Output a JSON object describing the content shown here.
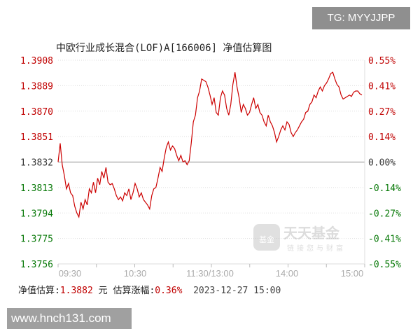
{
  "banner": "TG: MYYJJPP",
  "footer_site": "www.hnch131.com",
  "chart_data": {
    "type": "line",
    "title": "中欧行业成长混合(LOF)A[166006]  净值估算图",
    "x_tick_labels": [
      "09:30",
      "10:30",
      "11:30/13:00",
      "14:00",
      "15:00"
    ],
    "y_left_ticks": [
      "1.3908",
      "1.3889",
      "1.3870",
      "1.3851",
      "1.3832",
      "1.3813",
      "1.3794",
      "1.3775",
      "1.3756"
    ],
    "y_right_ticks": [
      "0.55%",
      "0.41%",
      "0.27%",
      "0.14%",
      "0.00%",
      "-0.14%",
      "-0.27%",
      "-0.41%",
      "-0.55%"
    ],
    "ylim": [
      1.3756,
      1.3908
    ],
    "baseline": 1.3832,
    "grid": true,
    "colors": {
      "line": "#cc0000",
      "up": "#c00000",
      "down": "#0a7a0a",
      "grid": "#dddddd"
    },
    "values": [
      1.3832,
      1.3846,
      1.383,
      1.3822,
      1.3812,
      1.3816,
      1.3809,
      1.3807,
      1.3799,
      1.3794,
      1.3791,
      1.3802,
      1.3797,
      1.3804,
      1.38,
      1.3812,
      1.3809,
      1.3817,
      1.3809,
      1.382,
      1.3815,
      1.3825,
      1.382,
      1.3828,
      1.3817,
      1.3815,
      1.3816,
      1.3812,
      1.3807,
      1.3804,
      1.3806,
      1.3803,
      1.3809,
      1.3807,
      1.3812,
      1.3804,
      1.3809,
      1.3816,
      1.3812,
      1.3806,
      1.3809,
      1.3804,
      1.3802,
      1.38,
      1.3797,
      1.3807,
      1.3812,
      1.3813,
      1.382,
      1.3828,
      1.3825,
      1.3835,
      1.3843,
      1.3847,
      1.3841,
      1.3844,
      1.3842,
      1.3837,
      1.3833,
      1.3837,
      1.3832,
      1.3833,
      1.383,
      1.3833,
      1.3846,
      1.3862,
      1.3867,
      1.388,
      1.3885,
      1.3894,
      1.3893,
      1.3892,
      1.3888,
      1.3882,
      1.3875,
      1.388,
      1.3869,
      1.3867,
      1.388,
      1.3885,
      1.3882,
      1.3872,
      1.3867,
      1.3875,
      1.389,
      1.3899,
      1.3888,
      1.388,
      1.3869,
      1.3875,
      1.3872,
      1.3867,
      1.3869,
      1.3875,
      1.388,
      1.3872,
      1.3875,
      1.3869,
      1.3867,
      1.3862,
      1.3859,
      1.3867,
      1.3862,
      1.3859,
      1.3854,
      1.3847,
      1.3851,
      1.3856,
      1.3859,
      1.3856,
      1.3862,
      1.386,
      1.3854,
      1.3851,
      1.3854,
      1.3856,
      1.3859,
      1.3862,
      1.3864,
      1.3869,
      1.387,
      1.3875,
      1.3877,
      1.3882,
      1.388,
      1.3885,
      1.3888,
      1.3885,
      1.3889,
      1.3891,
      1.3894,
      1.3898,
      1.3899,
      1.3894,
      1.389,
      1.3888,
      1.3882,
      1.3879,
      1.388,
      1.3881,
      1.3882,
      1.3881,
      1.3884,
      1.3885,
      1.3885,
      1.3883,
      1.3882
    ]
  },
  "watermark": {
    "brand": "天天基金",
    "slogan": "链接您与财富",
    "badge": "基金"
  },
  "summary": {
    "nav_label": "净值估算:",
    "nav_value": "1.3882",
    "unit": " 元 ",
    "change_label": "估算涨幅:",
    "change_value": "0.36%",
    "datetime": "  2023-12-27 15:00"
  }
}
